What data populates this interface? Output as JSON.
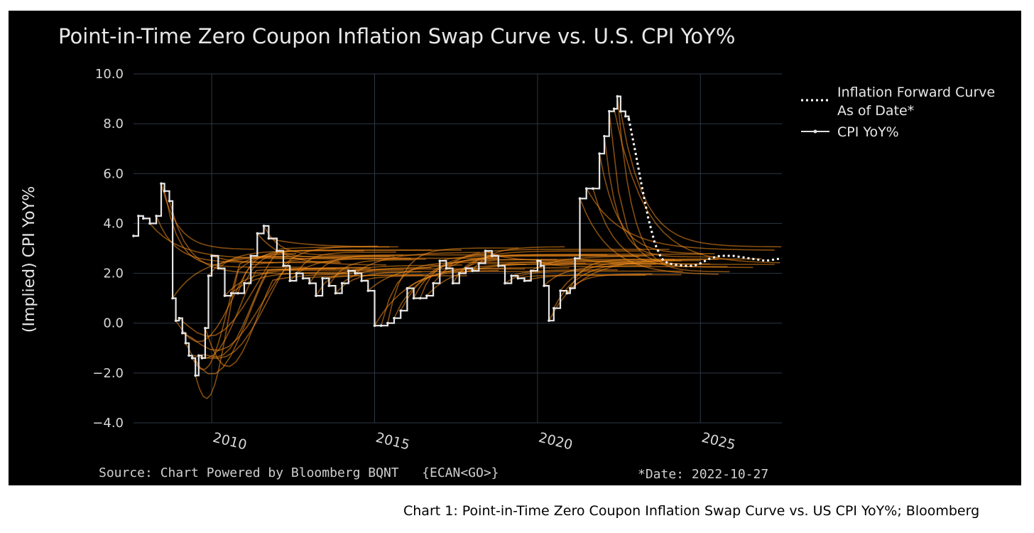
{
  "caption": "Chart 1: Point-in-Time Zero Coupon Inflation Swap Curve vs. US CPI YoY%; Bloomberg",
  "chart_data": {
    "type": "line",
    "title": "Point-in-Time Zero Coupon Inflation Swap Curve vs. U.S. CPI YoY%",
    "ylabel": "(Implied) CPI YoY%",
    "xlabel": "",
    "ylim": [
      -4.0,
      10.0
    ],
    "xlim": [
      2007.6,
      2027.5
    ],
    "yticks": [
      "10.0",
      "8.0",
      "6.0",
      "4.0",
      "2.0",
      "0.0",
      "−2.0",
      "−4.0"
    ],
    "ytick_values": [
      10,
      8,
      6,
      4,
      2,
      0,
      -2,
      -4
    ],
    "xticks": [
      "2010",
      "2015",
      "2020",
      "2025"
    ],
    "xtick_values": [
      2010,
      2015,
      2020,
      2025
    ],
    "grid": true,
    "legend_placement": "top-right",
    "legend": [
      {
        "label_lines": [
          "Inflation Forward Curve",
          "As of Date*"
        ],
        "style": "dotted",
        "color": "#ffffff"
      },
      {
        "label_lines": [
          "CPI YoY%"
        ],
        "style": "line-marker",
        "color": "#e0e0e0"
      }
    ],
    "source_text": "Source: Chart Powered by Bloomberg BQNT   {ECAN<GO>}",
    "date_text": "*Date: 2022-10-27",
    "colors": {
      "background": "#000000",
      "grid": "#2e3846",
      "cpi": "#e6e6e6",
      "forward": "#ffffff",
      "swap_curves": "#f28c1c"
    },
    "series": [
      {
        "name": "CPI YoY%",
        "x": [
          2007.6,
          2007.75,
          2007.9,
          2008.1,
          2008.3,
          2008.45,
          2008.55,
          2008.7,
          2008.8,
          2008.9,
          2009.0,
          2009.1,
          2009.2,
          2009.3,
          2009.4,
          2009.5,
          2009.6,
          2009.7,
          2009.8,
          2009.9,
          2010.0,
          2010.2,
          2010.4,
          2010.6,
          2010.8,
          2011.0,
          2011.2,
          2011.4,
          2011.6,
          2011.75,
          2012.0,
          2012.2,
          2012.4,
          2012.6,
          2012.8,
          2013.0,
          2013.2,
          2013.4,
          2013.6,
          2013.8,
          2014.0,
          2014.2,
          2014.4,
          2014.6,
          2014.8,
          2015.0,
          2015.2,
          2015.4,
          2015.6,
          2015.8,
          2016.0,
          2016.2,
          2016.4,
          2016.6,
          2016.8,
          2017.0,
          2017.2,
          2017.4,
          2017.6,
          2017.8,
          2018.0,
          2018.2,
          2018.4,
          2018.6,
          2018.8,
          2019.0,
          2019.2,
          2019.4,
          2019.6,
          2019.8,
          2020.0,
          2020.1,
          2020.2,
          2020.35,
          2020.5,
          2020.7,
          2020.9,
          2021.0,
          2021.15,
          2021.3,
          2021.5,
          2021.7,
          2021.9,
          2022.05,
          2022.2,
          2022.35,
          2022.45,
          2022.55,
          2022.7,
          2022.8
        ],
        "y": [
          3.5,
          4.3,
          4.2,
          4.0,
          4.3,
          5.6,
          5.3,
          4.9,
          1.0,
          0.1,
          0.2,
          -0.4,
          -0.8,
          -1.3,
          -1.4,
          -2.1,
          -1.3,
          -1.4,
          -0.2,
          1.9,
          2.7,
          2.2,
          1.1,
          1.2,
          1.2,
          1.6,
          2.7,
          3.6,
          3.9,
          3.4,
          2.9,
          2.3,
          1.7,
          2.0,
          1.8,
          1.6,
          1.1,
          1.8,
          1.5,
          1.2,
          1.6,
          2.1,
          2.0,
          1.7,
          1.3,
          -0.1,
          -0.1,
          0.0,
          0.2,
          0.5,
          1.4,
          1.0,
          1.0,
          1.1,
          1.6,
          2.5,
          2.2,
          1.6,
          2.0,
          2.2,
          2.1,
          2.4,
          2.9,
          2.7,
          2.3,
          1.6,
          1.9,
          1.8,
          1.7,
          2.1,
          2.5,
          2.3,
          1.5,
          0.1,
          0.6,
          1.3,
          1.2,
          1.4,
          2.6,
          5.0,
          5.4,
          5.4,
          6.8,
          7.5,
          8.5,
          8.6,
          9.1,
          8.5,
          8.3,
          8.2
        ]
      },
      {
        "name": "Inflation Forward Curve As of Date*",
        "x": [
          2022.8,
          2023.0,
          2023.2,
          2023.4,
          2023.6,
          2023.8,
          2024.0,
          2024.2,
          2024.5,
          2024.8,
          2025.0,
          2025.3,
          2025.6,
          2026.0,
          2026.5,
          2027.0,
          2027.5
        ],
        "y": [
          8.2,
          6.9,
          5.5,
          4.2,
          3.2,
          2.6,
          2.4,
          2.35,
          2.3,
          2.3,
          2.4,
          2.6,
          2.7,
          2.7,
          2.6,
          2.5,
          2.6
        ]
      }
    ]
  }
}
